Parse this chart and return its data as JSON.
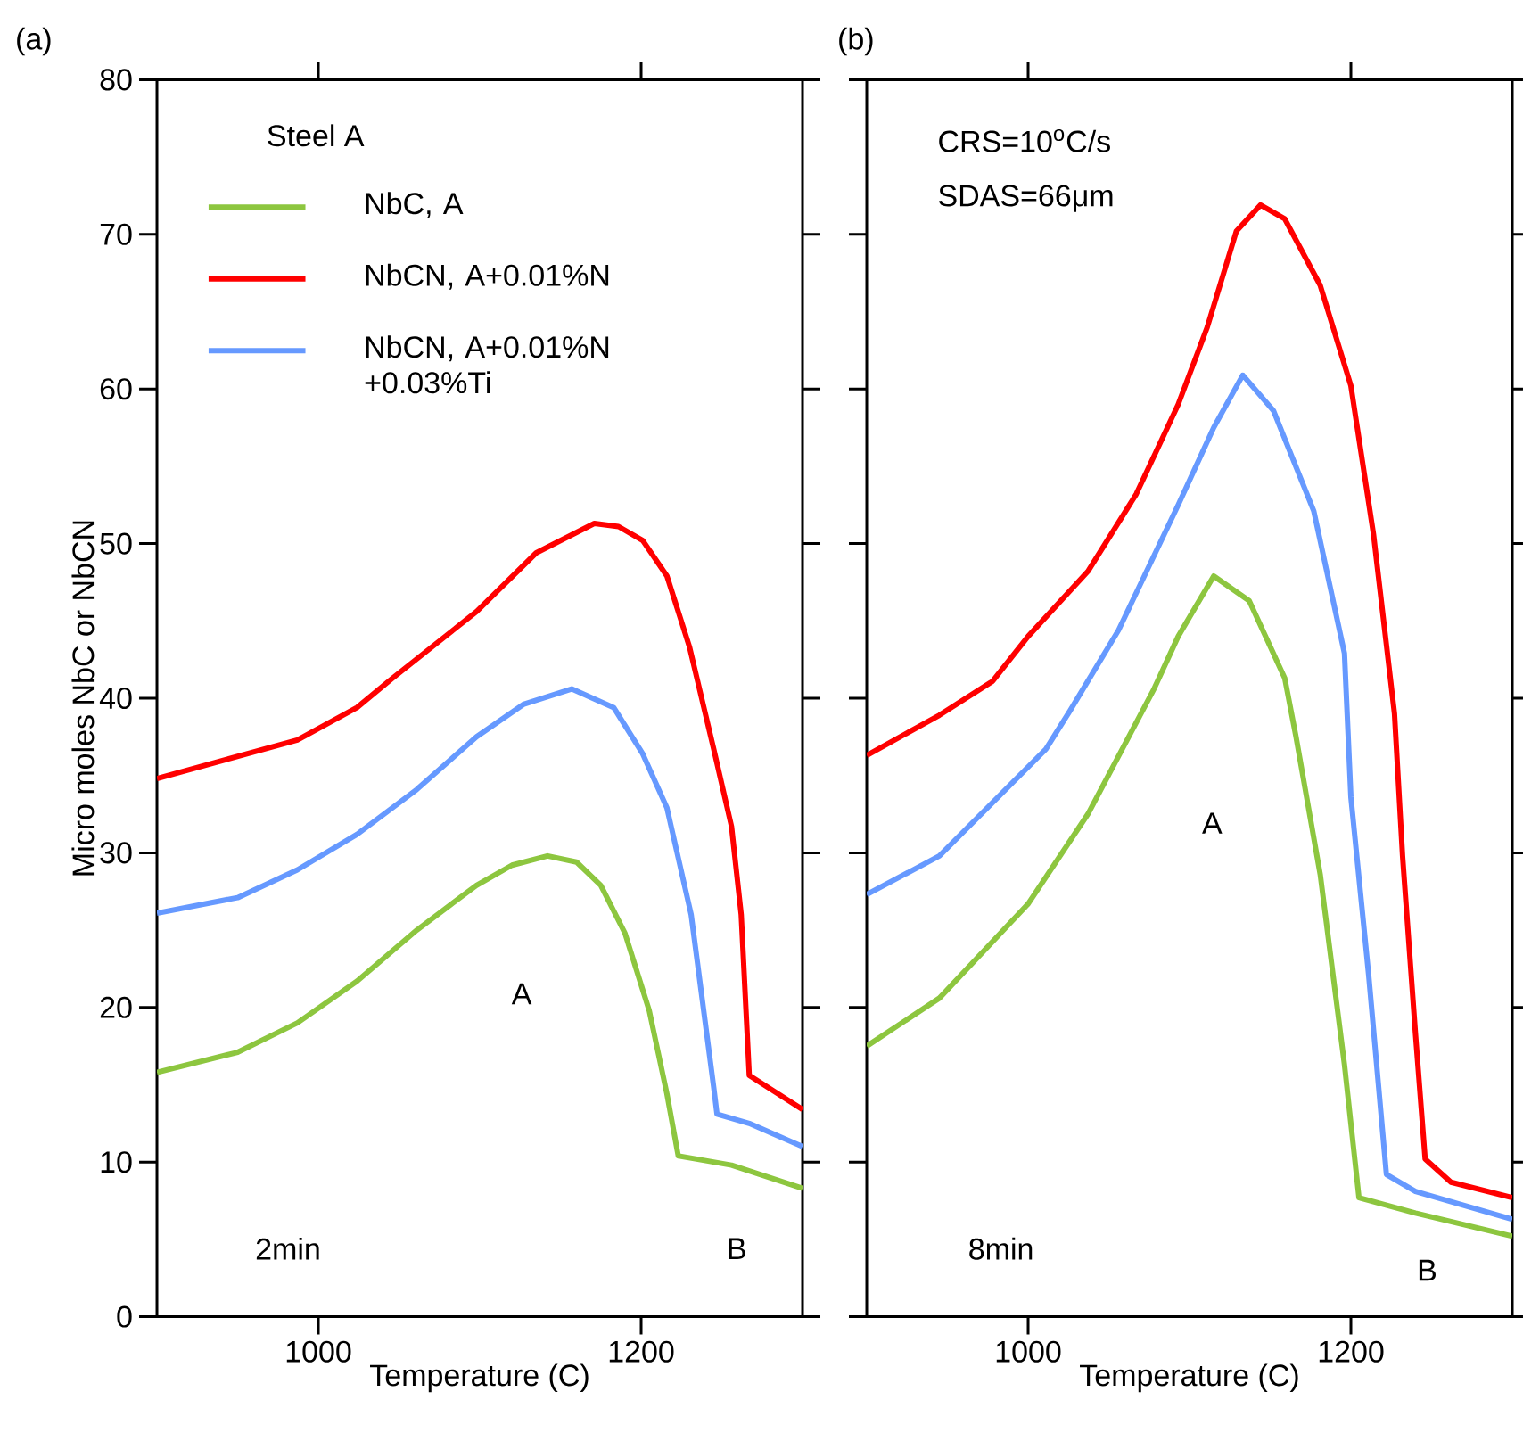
{
  "chart_data": [
    {
      "type": "line",
      "title": "(a)",
      "xlabel": "Temperature (C)",
      "ylabel": "Micro moles NbC or NbCN",
      "legend_title": "Steel A",
      "legend": "top left",
      "line_style": "solid",
      "xlim": [
        900,
        1300
      ],
      "ylim": [
        0,
        80
      ],
      "xticks": [
        1000,
        1200
      ],
      "yticks": [
        0,
        10,
        20,
        30,
        40,
        50,
        60,
        70,
        80
      ],
      "series": [
        {
          "name": "NbC, A",
          "color": "#8dc63f",
          "x": [
            900,
            950,
            987,
            1024,
            1061,
            1098,
            1120,
            1142,
            1160,
            1175,
            1190,
            1205,
            1216,
            1223,
            1256,
            1300
          ],
          "values": [
            15.8,
            17.1,
            19.0,
            21.7,
            25.0,
            27.9,
            29.2,
            29.8,
            29.4,
            27.9,
            24.8,
            19.8,
            14.4,
            10.4,
            9.8,
            8.3
          ]
        },
        {
          "name": "NbCN, A+0.01%N",
          "color": "#ff0000",
          "x": [
            900,
            987,
            1024,
            1046,
            1098,
            1135,
            1171,
            1186,
            1201,
            1216,
            1230,
            1245,
            1256,
            1262,
            1267,
            1300
          ],
          "values": [
            34.8,
            37.3,
            39.4,
            41.3,
            45.6,
            49.4,
            51.3,
            51.1,
            50.2,
            47.9,
            43.3,
            36.7,
            31.7,
            26.0,
            15.6,
            13.4
          ]
        },
        {
          "name": "NbCN, A+0.01%N +0.03%Ti",
          "color": "#6699ff",
          "x": [
            900,
            950,
            987,
            1024,
            1061,
            1098,
            1127,
            1157,
            1183,
            1201,
            1216,
            1231,
            1245,
            1247,
            1267,
            1300
          ],
          "values": [
            26.1,
            27.1,
            28.9,
            31.2,
            34.1,
            37.5,
            39.6,
            40.6,
            39.4,
            36.4,
            32.9,
            26.0,
            14.8,
            13.1,
            12.5,
            11.0
          ]
        }
      ],
      "annotations": [
        "A",
        "B",
        "2min"
      ]
    },
    {
      "type": "line",
      "title": "(b)",
      "xlabel": "Temperature (C)",
      "tick_labels": "x",
      "line_style": "solid",
      "xlim": [
        900,
        1300
      ],
      "ylim": [
        0,
        80
      ],
      "xticks": [
        1000,
        1200
      ],
      "yticks": [
        0,
        10,
        20,
        30,
        40,
        50,
        60,
        70,
        80
      ],
      "series": [
        {
          "color": "#8dc63f",
          "x": [
            900,
            945,
            1000,
            1037,
            1078,
            1093,
            1115,
            1137,
            1159,
            1166,
            1181,
            1196,
            1205,
            1240,
            1300
          ],
          "values": [
            17.5,
            20.6,
            26.7,
            32.5,
            40.6,
            44.0,
            47.9,
            46.3,
            41.3,
            37.5,
            28.6,
            16.3,
            7.7,
            6.7,
            5.2
          ]
        },
        {
          "color": "#ff0000",
          "x": [
            900,
            945,
            978,
            1000,
            1037,
            1067,
            1093,
            1111,
            1129,
            1144,
            1159,
            1181,
            1200,
            1214,
            1227,
            1232,
            1240,
            1246,
            1262,
            1300
          ],
          "values": [
            36.3,
            38.9,
            41.1,
            44.0,
            48.2,
            53.2,
            59.0,
            64.0,
            70.2,
            71.9,
            71.0,
            66.7,
            60.2,
            50.6,
            39.0,
            29.8,
            18.3,
            10.2,
            8.7,
            7.7
          ]
        },
        {
          "color": "#6699ff",
          "x": [
            900,
            945,
            1011,
            1026,
            1056,
            1093,
            1115,
            1133,
            1152,
            1177,
            1196,
            1200,
            1211,
            1222,
            1240,
            1300
          ],
          "values": [
            27.3,
            29.8,
            36.7,
            39.2,
            44.4,
            52.5,
            57.5,
            60.9,
            58.6,
            52.1,
            42.9,
            33.6,
            22.1,
            9.2,
            8.1,
            6.3
          ]
        }
      ],
      "annotations": [
        "CRS=10$^{o}$C/s",
        "SDAS=66μm",
        "A",
        "B",
        "8min"
      ]
    }
  ]
}
